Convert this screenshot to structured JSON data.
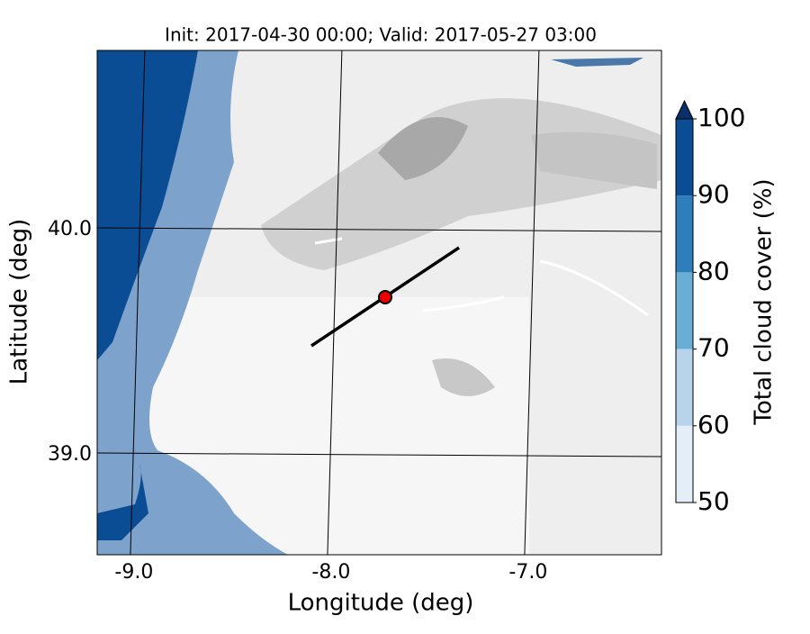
{
  "chart_data": {
    "type": "map",
    "title": "Init: 2017-04-30 00:00; Valid: 2017-05-27 03:00",
    "x_label": "Longitude (deg)",
    "y_label": "Latitude (deg)",
    "xlim": [
      -9.205,
      -6.342
    ],
    "ylim": [
      38.556,
      40.796
    ],
    "xticks": [
      {
        "value": -9,
        "label": "-9.0"
      },
      {
        "value": -8,
        "label": "-8.0"
      },
      {
        "value": -7,
        "label": "-7.0"
      }
    ],
    "yticks": [
      {
        "value": 39,
        "label": "39.0"
      },
      {
        "value": 40,
        "label": "40.0"
      }
    ],
    "grid": true,
    "colorbar": {
      "label": "Total cloud cover (%)",
      "levels": [
        50,
        60,
        70,
        80,
        90,
        100
      ],
      "colors": [
        "#e3eef8",
        "#b7d4ea",
        "#6aaed6",
        "#2e7ebc",
        "#0b4d94"
      ],
      "extend_color": "#08306b"
    }
  }
}
